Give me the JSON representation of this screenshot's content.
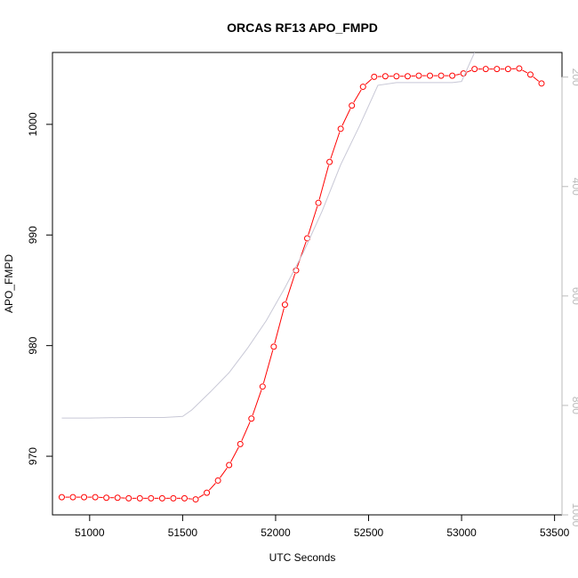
{
  "chart_data": {
    "type": "line",
    "title": "ORCAS RF13 APO_FMPD",
    "xlabel": "UTC Seconds",
    "ylabel": "APO_FMPD",
    "xlim": [
      50800,
      53540
    ],
    "ylim": [
      964.7,
      1006.5
    ],
    "y2lim": [
      1000,
      155
    ],
    "x_ticks": [
      51000,
      51500,
      52000,
      52500,
      53000,
      53500
    ],
    "y_ticks": [
      970,
      980,
      990,
      1000
    ],
    "y2_ticks": [
      200,
      400,
      600,
      800,
      1000
    ],
    "grid": false,
    "series": [
      {
        "axis": "left",
        "color": "#ff0000",
        "marker": "open-circle",
        "x": [
          50850,
          50910,
          50970,
          51030,
          51090,
          51150,
          51210,
          51270,
          51330,
          51390,
          51450,
          51510,
          51570,
          51630,
          51690,
          51750,
          51810,
          51870,
          51930,
          51990,
          52050,
          52110,
          52170,
          52230,
          52290,
          52350,
          52410,
          52470,
          52530,
          52590,
          52650,
          52710,
          52770,
          52830,
          52890,
          52950,
          53010,
          53070,
          53130,
          53190,
          53250,
          53310,
          53370,
          53430
        ],
        "y": [
          966.3,
          966.3,
          966.3,
          966.3,
          966.25,
          966.25,
          966.2,
          966.2,
          966.2,
          966.2,
          966.2,
          966.2,
          966.1,
          966.7,
          967.8,
          969.2,
          971.1,
          973.4,
          976.3,
          979.9,
          983.7,
          986.8,
          989.7,
          992.9,
          996.6,
          999.6,
          1001.7,
          1003.4,
          1004.3,
          1004.35,
          1004.35,
          1004.35,
          1004.4,
          1004.4,
          1004.4,
          1004.4,
          1004.6,
          1005.0,
          1005.0,
          1005.0,
          1005.0,
          1005.05,
          1004.5,
          1003.7
        ]
      },
      {
        "axis": "right",
        "color": "#c8c8d6",
        "marker": "none",
        "x": [
          50850,
          51000,
          51200,
          51400,
          51500,
          51550,
          51650,
          51750,
          51850,
          51950,
          52050,
          52150,
          52250,
          52350,
          52450,
          52550,
          52650,
          52750,
          52850,
          52950,
          53000,
          53050,
          53070
        ],
        "y": [
          823,
          823,
          822,
          822,
          820,
          808,
          775,
          740,
          695,
          645,
          585,
          520,
          445,
          360,
          290,
          215,
          210,
          210,
          210,
          210,
          208,
          170,
          155
        ]
      }
    ]
  }
}
